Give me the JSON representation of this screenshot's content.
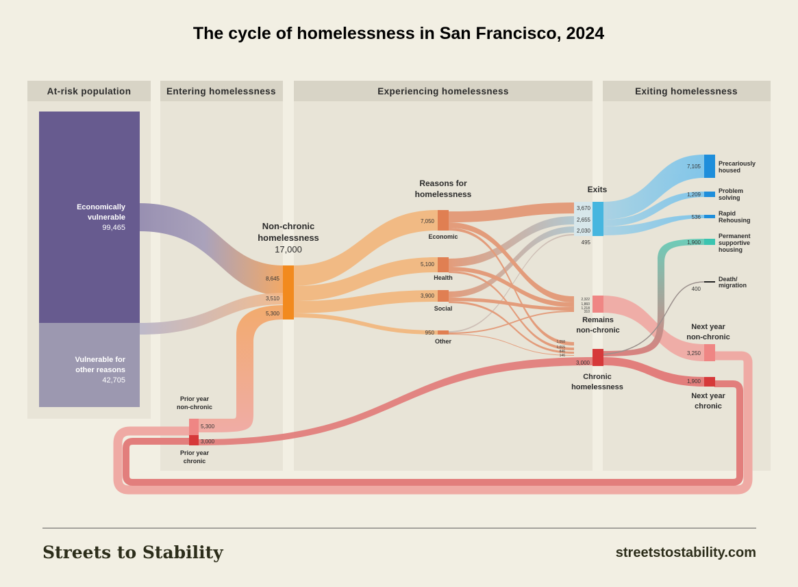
{
  "title": "The cycle of homelessness in San Francisco, 2024",
  "columns": [
    "At-risk population",
    "Entering homelessness",
    "Experiencing homelessness",
    "Exiting homelessness"
  ],
  "at_risk": {
    "economic": {
      "line1": "Economically",
      "line2": "vulnerable",
      "value": "99,465"
    },
    "other": {
      "line1": "Vulnerable for",
      "line2": "other reasons",
      "value": "42,705"
    }
  },
  "non_chronic": {
    "line1": "Non-chronic",
    "line2": "homelessness",
    "value": "17,000",
    "in_economic": "8,645",
    "in_other": "3,510",
    "in_prior": "5,300"
  },
  "prior_year": {
    "nonchronic_line1": "Prior year",
    "nonchronic_line2": "non-chronic",
    "nonchronic_value": "5,300",
    "chronic_line1": "Prior year",
    "chronic_line2": "chronic",
    "chronic_value": "3,000"
  },
  "reasons": {
    "line1": "Reasons for",
    "line2": "homelessness",
    "items": [
      {
        "label": "Economic",
        "value": "7,050"
      },
      {
        "label": "Health",
        "value": "5,100"
      },
      {
        "label": "Social",
        "value": "3,900"
      },
      {
        "label": "Other",
        "value": "950"
      }
    ]
  },
  "exits": {
    "label": "Exits",
    "values": [
      "3,670",
      "2,655",
      "2,030",
      "495"
    ]
  },
  "remains": {
    "line1": "Remains",
    "line2": "non-chronic",
    "values": [
      "2,322",
      "1,860",
      "1,218",
      "310"
    ]
  },
  "chronic": {
    "line1": "Chronic",
    "line2": "homelessness",
    "value": "3,000",
    "values": [
      "1,058",
      "1,015",
      "846",
      "146"
    ]
  },
  "outcomes": [
    {
      "line1": "Precariously",
      "line2": "housed",
      "line3": "",
      "value": "7,105"
    },
    {
      "line1": "Problem",
      "line2": "solving",
      "line3": "",
      "value": "1,209"
    },
    {
      "line1": "Rapid",
      "line2": "Rehousing",
      "line3": "",
      "value": "536"
    },
    {
      "line1": "Permanent",
      "line2": "supportive",
      "line3": "housing",
      "value": "1,900"
    },
    {
      "line1": "Death/",
      "line2": "migration",
      "line3": "",
      "value": "400"
    }
  ],
  "next_year": {
    "nonchronic_line1": "Next year",
    "nonchronic_line2": "non-chronic",
    "nonchronic_value": "3,250",
    "chronic_line1": "Next year",
    "chronic_line2": "chronic",
    "chronic_value": "1,900"
  },
  "footer": {
    "brand": "Streets to Stability",
    "url": "streetstostability.com"
  },
  "colors": {
    "background": "#f2efe3",
    "panel": "#e8e4d7",
    "header": "#d8d4c6",
    "economic_vulnerable": "#675b8f",
    "other_vulnerable": "#9c98b0",
    "non_chronic": "#f28a1e",
    "reasons": "#e07f52",
    "flow_orange": "#f2b67c",
    "exits": "#46b6df",
    "remains": "#ef8684",
    "chronic": "#d6393a",
    "psh": "#3bc4b0",
    "death": "#222222",
    "outcome_blue": "#1e8edb"
  }
}
